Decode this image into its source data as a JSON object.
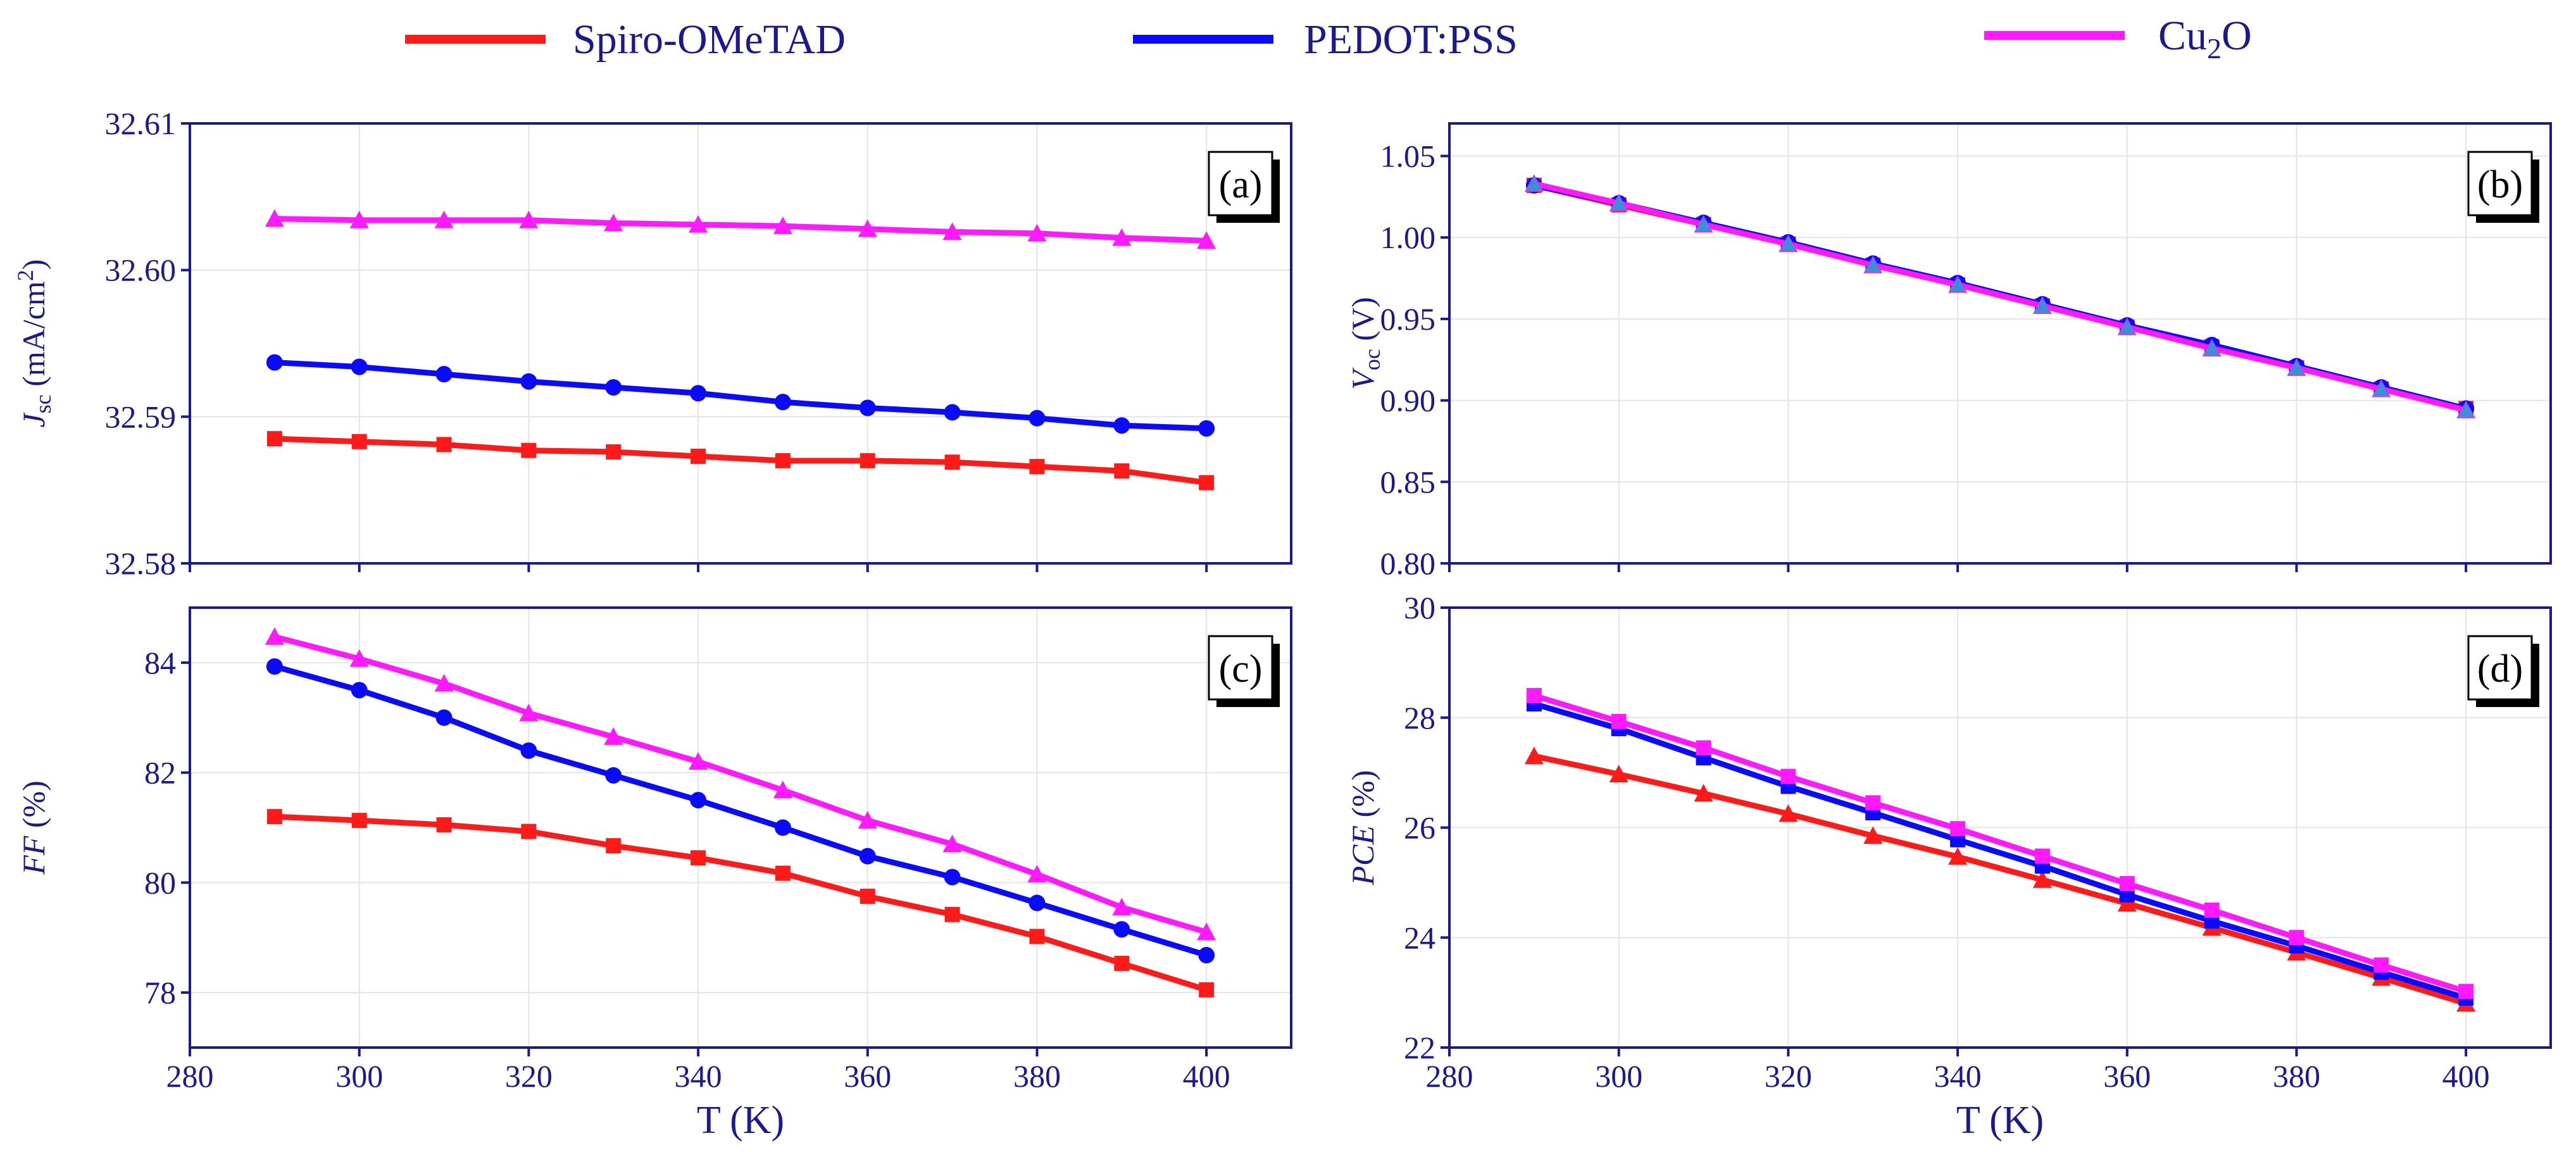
{
  "legend": {
    "series": [
      {
        "name": "Spiro-OMeTAD",
        "color": "#ff1a1a"
      },
      {
        "name": "PEDOT:PSS",
        "color": "#0a0aff"
      },
      {
        "name": "Cu2O",
        "color": "#ff19ff"
      }
    ],
    "cu2o": {
      "base": "Cu",
      "sub": "2",
      "tail": "O"
    }
  },
  "chart_data": [
    {
      "id": "a",
      "type": "line",
      "panel_label": "(a)",
      "ylabel": {
        "main": "J",
        "sub": "sc",
        "unit": " (mA/cm",
        "sup": "2",
        "close": ")"
      },
      "xlabel": "",
      "xlim": [
        280,
        410
      ],
      "ylim": [
        32.58,
        32.61
      ],
      "yticks": [
        32.58,
        32.59,
        32.6,
        32.61
      ],
      "ytick_labels": [
        "32.58",
        "32.59",
        "32.60",
        "32.61"
      ],
      "xticks": [
        280,
        300,
        320,
        340,
        360,
        380,
        400
      ],
      "xtick_labels": [],
      "x": [
        290,
        300,
        310,
        320,
        330,
        340,
        350,
        360,
        370,
        380,
        390,
        400
      ],
      "series": [
        {
          "name": "Spiro-OMeTAD",
          "marker": "square",
          "values": [
            32.5885,
            32.5883,
            32.5881,
            32.5877,
            32.5876,
            32.5873,
            32.587,
            32.587,
            32.5869,
            32.5866,
            32.5863,
            32.5855
          ]
        },
        {
          "name": "PEDOT:PSS",
          "marker": "circle",
          "values": [
            32.5937,
            32.5934,
            32.5929,
            32.5924,
            32.592,
            32.5916,
            32.591,
            32.5906,
            32.5903,
            32.5899,
            32.5894,
            32.5892
          ]
        },
        {
          "name": "Cu2O",
          "marker": "triangle",
          "values": [
            32.6035,
            32.6034,
            32.6034,
            32.6034,
            32.6032,
            32.6031,
            32.603,
            32.6028,
            32.6026,
            32.6025,
            32.6022,
            32.602
          ]
        }
      ]
    },
    {
      "id": "b",
      "type": "line",
      "panel_label": "(b)",
      "ylabel": {
        "main": "V",
        "sub": "oc",
        "unit": " (V)",
        "sup": "",
        "close": ""
      },
      "xlabel": "",
      "xlim": [
        280,
        410
      ],
      "ylim": [
        0.8,
        1.07
      ],
      "yticks": [
        0.8,
        0.85,
        0.9,
        0.95,
        1.0,
        1.05
      ],
      "ytick_labels": [
        "0.80",
        "0.85",
        "0.90",
        "0.95",
        "1.00",
        "1.05"
      ],
      "xticks": [
        280,
        300,
        320,
        340,
        360,
        380,
        400
      ],
      "xtick_labels": [],
      "x": [
        290,
        300,
        310,
        320,
        330,
        340,
        350,
        360,
        370,
        380,
        390,
        400
      ],
      "series": [
        {
          "name": "Spiro-OMeTAD",
          "marker": "square",
          "values": [
            1.032,
            1.02,
            1.008,
            0.996,
            0.983,
            0.971,
            0.958,
            0.945,
            0.933,
            0.92,
            0.907,
            0.895
          ]
        },
        {
          "name": "PEDOT:PSS",
          "marker": "circle",
          "values": [
            1.032,
            1.021,
            1.009,
            0.997,
            0.984,
            0.972,
            0.959,
            0.946,
            0.934,
            0.921,
            0.908,
            0.895
          ]
        },
        {
          "name": "Cu2O",
          "marker": "triangle",
          "values": [
            1.033,
            1.021,
            1.008,
            0.996,
            0.983,
            0.971,
            0.958,
            0.945,
            0.932,
            0.92,
            0.907,
            0.894
          ]
        }
      ]
    },
    {
      "id": "c",
      "type": "line",
      "panel_label": "(c)",
      "ylabel": {
        "main": "FF",
        "sub": "",
        "unit": " (%)",
        "sup": "",
        "close": ""
      },
      "xlabel": "T (K)",
      "xlim": [
        280,
        410
      ],
      "ylim": [
        77.0,
        85.0
      ],
      "yticks": [
        78,
        80,
        82,
        84
      ],
      "ytick_labels": [
        "78",
        "80",
        "82",
        "84"
      ],
      "xticks": [
        280,
        300,
        320,
        340,
        360,
        380,
        400
      ],
      "xtick_labels": [
        "280",
        "300",
        "320",
        "340",
        "360",
        "380",
        "400"
      ],
      "x": [
        290,
        300,
        310,
        320,
        330,
        340,
        350,
        360,
        370,
        380,
        390,
        400
      ],
      "series": [
        {
          "name": "Spiro-OMeTAD",
          "marker": "square",
          "values": [
            81.2,
            81.13,
            81.05,
            80.93,
            80.67,
            80.45,
            80.17,
            79.75,
            79.42,
            79.02,
            78.53,
            78.05
          ]
        },
        {
          "name": "PEDOT:PSS",
          "marker": "circle",
          "values": [
            83.93,
            83.5,
            83.0,
            82.4,
            81.95,
            81.5,
            81.0,
            80.48,
            80.1,
            79.63,
            79.15,
            78.68
          ]
        },
        {
          "name": "Cu2O",
          "marker": "triangle",
          "values": [
            84.47,
            84.07,
            83.62,
            83.08,
            82.65,
            82.2,
            81.68,
            81.13,
            80.7,
            80.15,
            79.55,
            79.1
          ]
        }
      ]
    },
    {
      "id": "d",
      "type": "line",
      "panel_label": "(d)",
      "ylabel": {
        "main": "PCE",
        "sub": "",
        "unit": " (%)",
        "sup": "",
        "close": ""
      },
      "xlabel": "T (K)",
      "xlim": [
        280,
        410
      ],
      "ylim": [
        22,
        30
      ],
      "yticks": [
        22,
        24,
        26,
        28,
        30
      ],
      "ytick_labels": [
        "22",
        "24",
        "26",
        "28",
        "30"
      ],
      "xticks": [
        280,
        300,
        320,
        340,
        360,
        380,
        400
      ],
      "xtick_labels": [
        "280",
        "300",
        "320",
        "340",
        "360",
        "380",
        "400"
      ],
      "x": [
        290,
        300,
        310,
        320,
        330,
        340,
        350,
        360,
        370,
        380,
        390,
        400
      ],
      "series": [
        {
          "name": "Spiro-OMeTAD",
          "marker": "triangle",
          "values": [
            27.3,
            26.97,
            26.62,
            26.25,
            25.85,
            25.47,
            25.05,
            24.62,
            24.18,
            23.73,
            23.27,
            22.8
          ]
        },
        {
          "name": "PEDOT:PSS",
          "marker": "square",
          "values": [
            28.25,
            27.8,
            27.27,
            26.75,
            26.27,
            25.78,
            25.3,
            24.78,
            24.3,
            23.85,
            23.37,
            22.9
          ]
        },
        {
          "name": "Cu2O",
          "marker": "square",
          "values": [
            28.4,
            27.93,
            27.45,
            26.93,
            26.45,
            25.98,
            25.48,
            24.98,
            24.5,
            24.0,
            23.5,
            23.02
          ]
        }
      ]
    }
  ]
}
